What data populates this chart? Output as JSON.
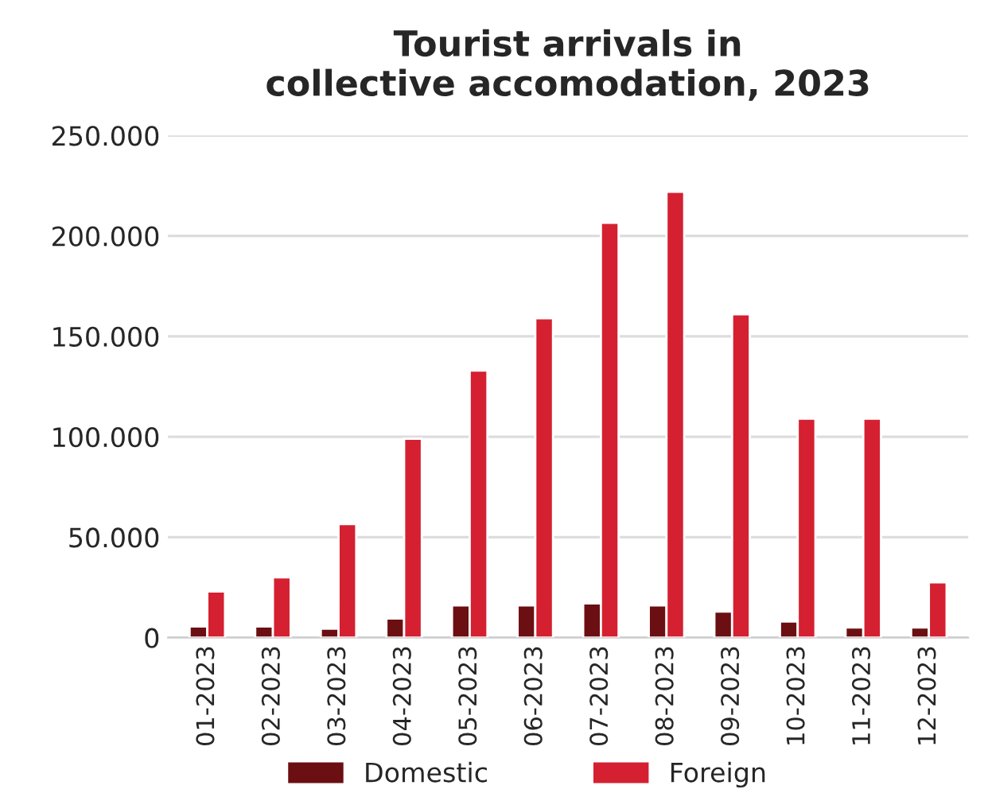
{
  "chart_data": {
    "type": "bar",
    "title": "Tourist arrivals in\ncollective accomodation, 2023",
    "categories": [
      "01-2023",
      "02-2023",
      "03-2023",
      "04-2023",
      "05-2023",
      "06-2023",
      "07-2023",
      "08-2023",
      "09-2023",
      "10-2023",
      "11-2023",
      "12-2023"
    ],
    "series": [
      {
        "name": "Domestic",
        "color": "#6b0f12",
        "values": [
          5500,
          5500,
          4500,
          9500,
          16000,
          16000,
          17000,
          16000,
          13000,
          8000,
          5000,
          5000
        ]
      },
      {
        "name": "Foreign",
        "color": "#d42030",
        "values": [
          23000,
          30000,
          56500,
          99000,
          133000,
          159000,
          206500,
          222000,
          161000,
          109000,
          109000,
          27500
        ]
      }
    ],
    "ylim": [
      0,
      250000
    ],
    "yticks": [
      {
        "value": 0,
        "label": "0"
      },
      {
        "value": 50000,
        "label": "50.000"
      },
      {
        "value": 100000,
        "label": "100.000"
      },
      {
        "value": 150000,
        "label": "150.000"
      },
      {
        "value": 200000,
        "label": "200.000"
      },
      {
        "value": 250000,
        "label": "250.000"
      }
    ],
    "grid": "y",
    "legend": "bottom"
  }
}
